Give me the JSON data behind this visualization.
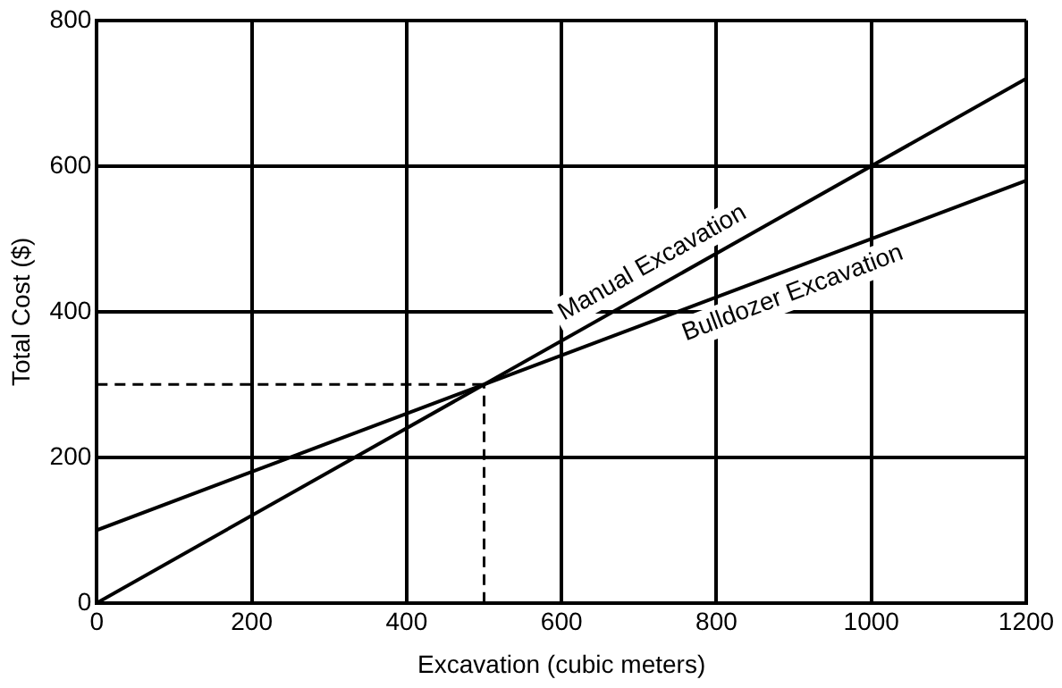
{
  "chart_data": {
    "type": "line",
    "xlabel": "Excavation (cubic meters)",
    "ylabel": "Total Cost ($)",
    "x": [
      0,
      1200
    ],
    "xlim": [
      0,
      1200
    ],
    "xticks": [
      0,
      200,
      400,
      600,
      800,
      1000,
      1200
    ],
    "ylim": [
      0,
      800
    ],
    "yticks": [
      0,
      200,
      400,
      600,
      800
    ],
    "series": [
      {
        "name": "Manual Excavation",
        "color": "#000000",
        "values": [
          0,
          720
        ]
      },
      {
        "name": "Bulldozer Excavation",
        "color": "#000000",
        "values": [
          100,
          580
        ]
      }
    ],
    "ref_lines": [
      {
        "axis": "y",
        "value": 300,
        "line_style": "dashed",
        "color": "#000000"
      },
      {
        "axis": "x",
        "value": 500,
        "line_style": "dashed",
        "color": "#000000"
      }
    ],
    "grid": true,
    "legend": false,
    "marker": "none",
    "line_style": "solid"
  }
}
